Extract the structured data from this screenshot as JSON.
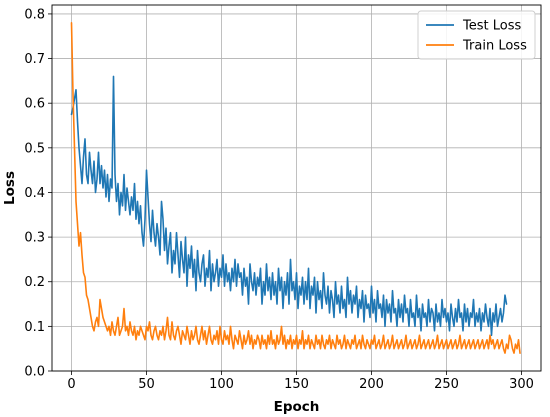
{
  "chart_data": {
    "type": "line",
    "title": "",
    "xlabel": "Epoch",
    "ylabel": "Loss",
    "xlim": [
      -13,
      313
    ],
    "ylim": [
      0.0,
      0.82
    ],
    "xticks": [
      0,
      50,
      100,
      150,
      200,
      250,
      300
    ],
    "yticks": [
      0.0,
      0.1,
      0.2,
      0.3,
      0.4,
      0.5,
      0.6,
      0.7,
      0.8
    ],
    "ytick_labels": [
      "0.0",
      "0.1",
      "0.2",
      "0.3",
      "0.4",
      "0.5",
      "0.6",
      "0.7",
      "0.8"
    ],
    "grid": true,
    "legend_position": "top-right",
    "x_start": 0,
    "x_step": 1,
    "series": [
      {
        "name": "Test Loss",
        "color": "#1f77b4",
        "values": [
          0.575,
          0.59,
          0.61,
          0.63,
          0.56,
          0.5,
          0.46,
          0.42,
          0.48,
          0.52,
          0.44,
          0.42,
          0.49,
          0.45,
          0.42,
          0.47,
          0.4,
          0.43,
          0.49,
          0.42,
          0.46,
          0.41,
          0.45,
          0.39,
          0.44,
          0.38,
          0.43,
          0.41,
          0.66,
          0.44,
          0.38,
          0.42,
          0.35,
          0.4,
          0.37,
          0.44,
          0.36,
          0.41,
          0.38,
          0.35,
          0.39,
          0.36,
          0.42,
          0.34,
          0.38,
          0.33,
          0.37,
          0.31,
          0.28,
          0.34,
          0.45,
          0.39,
          0.33,
          0.29,
          0.36,
          0.31,
          0.28,
          0.33,
          0.3,
          0.26,
          0.38,
          0.34,
          0.27,
          0.32,
          0.24,
          0.28,
          0.31,
          0.22,
          0.27,
          0.24,
          0.31,
          0.26,
          0.21,
          0.29,
          0.25,
          0.22,
          0.3,
          0.19,
          0.26,
          0.23,
          0.28,
          0.21,
          0.25,
          0.18,
          0.27,
          0.22,
          0.2,
          0.24,
          0.26,
          0.19,
          0.23,
          0.21,
          0.27,
          0.18,
          0.24,
          0.2,
          0.22,
          0.25,
          0.19,
          0.23,
          0.21,
          0.26,
          0.19,
          0.24,
          0.2,
          0.22,
          0.18,
          0.23,
          0.2,
          0.25,
          0.19,
          0.24,
          0.21,
          0.22,
          0.17,
          0.23,
          0.19,
          0.21,
          0.15,
          0.24,
          0.2,
          0.18,
          0.22,
          0.17,
          0.21,
          0.19,
          0.23,
          0.15,
          0.2,
          0.17,
          0.24,
          0.18,
          0.21,
          0.16,
          0.22,
          0.17,
          0.2,
          0.15,
          0.23,
          0.18,
          0.21,
          0.14,
          0.2,
          0.17,
          0.22,
          0.15,
          0.25,
          0.18,
          0.2,
          0.16,
          0.22,
          0.14,
          0.19,
          0.17,
          0.21,
          0.15,
          0.2,
          0.16,
          0.23,
          0.14,
          0.19,
          0.17,
          0.21,
          0.13,
          0.2,
          0.16,
          0.18,
          0.14,
          0.22,
          0.17,
          0.15,
          0.19,
          0.13,
          0.18,
          0.16,
          0.12,
          0.2,
          0.15,
          0.17,
          0.13,
          0.19,
          0.14,
          0.16,
          0.12,
          0.21,
          0.15,
          0.18,
          0.13,
          0.17,
          0.15,
          0.19,
          0.12,
          0.16,
          0.14,
          0.18,
          0.11,
          0.17,
          0.14,
          0.15,
          0.12,
          0.19,
          0.13,
          0.16,
          0.11,
          0.18,
          0.14,
          0.15,
          0.12,
          0.17,
          0.1,
          0.16,
          0.13,
          0.15,
          0.11,
          0.18,
          0.13,
          0.14,
          0.1,
          0.16,
          0.12,
          0.15,
          0.11,
          0.17,
          0.13,
          0.14,
          0.1,
          0.16,
          0.12,
          0.13,
          0.1,
          0.17,
          0.12,
          0.14,
          0.09,
          0.15,
          0.12,
          0.13,
          0.1,
          0.16,
          0.11,
          0.14,
          0.13,
          0.09,
          0.15,
          0.11,
          0.13,
          0.1,
          0.16,
          0.12,
          0.14,
          0.11,
          0.13,
          0.09,
          0.15,
          0.12,
          0.1,
          0.14,
          0.11,
          0.16,
          0.12,
          0.13,
          0.09,
          0.15,
          0.11,
          0.14,
          0.1,
          0.13,
          0.12,
          0.16,
          0.1,
          0.13,
          0.11,
          0.14,
          0.09,
          0.13,
          0.11,
          0.15,
          0.12,
          0.1,
          0.14,
          0.08,
          0.13,
          0.11,
          0.15,
          0.1,
          0.12,
          0.14,
          0.11,
          0.13,
          0.17,
          0.15
        ]
      },
      {
        "name": "Train Loss",
        "color": "#ff7f0e",
        "values": [
          0.78,
          0.62,
          0.5,
          0.38,
          0.33,
          0.28,
          0.31,
          0.26,
          0.22,
          0.21,
          0.17,
          0.16,
          0.14,
          0.12,
          0.1,
          0.09,
          0.11,
          0.12,
          0.1,
          0.16,
          0.14,
          0.12,
          0.11,
          0.1,
          0.09,
          0.1,
          0.08,
          0.11,
          0.09,
          0.08,
          0.1,
          0.12,
          0.08,
          0.09,
          0.1,
          0.14,
          0.09,
          0.1,
          0.08,
          0.11,
          0.09,
          0.08,
          0.1,
          0.07,
          0.09,
          0.08,
          0.1,
          0.09,
          0.08,
          0.07,
          0.1,
          0.09,
          0.11,
          0.08,
          0.07,
          0.09,
          0.1,
          0.08,
          0.07,
          0.09,
          0.08,
          0.1,
          0.07,
          0.09,
          0.12,
          0.08,
          0.07,
          0.11,
          0.08,
          0.07,
          0.09,
          0.1,
          0.08,
          0.06,
          0.09,
          0.08,
          0.07,
          0.1,
          0.08,
          0.06,
          0.09,
          0.07,
          0.08,
          0.1,
          0.07,
          0.06,
          0.08,
          0.1,
          0.07,
          0.09,
          0.06,
          0.08,
          0.1,
          0.07,
          0.06,
          0.08,
          0.07,
          0.09,
          0.06,
          0.1,
          0.07,
          0.06,
          0.09,
          0.07,
          0.08,
          0.06,
          0.1,
          0.07,
          0.05,
          0.08,
          0.07,
          0.06,
          0.09,
          0.07,
          0.05,
          0.08,
          0.06,
          0.07,
          0.09,
          0.06,
          0.08,
          0.05,
          0.07,
          0.06,
          0.08,
          0.07,
          0.05,
          0.08,
          0.06,
          0.07,
          0.05,
          0.08,
          0.06,
          0.09,
          0.06,
          0.07,
          0.05,
          0.08,
          0.06,
          0.07,
          0.1,
          0.06,
          0.08,
          0.05,
          0.07,
          0.06,
          0.08,
          0.05,
          0.07,
          0.06,
          0.08,
          0.05,
          0.07,
          0.06,
          0.09,
          0.05,
          0.07,
          0.06,
          0.08,
          0.05,
          0.07,
          0.06,
          0.05,
          0.08,
          0.06,
          0.07,
          0.05,
          0.08,
          0.06,
          0.05,
          0.07,
          0.06,
          0.08,
          0.05,
          0.07,
          0.06,
          0.05,
          0.08,
          0.06,
          0.07,
          0.05,
          0.06,
          0.08,
          0.05,
          0.07,
          0.06,
          0.05,
          0.07,
          0.06,
          0.08,
          0.05,
          0.06,
          0.07,
          0.05,
          0.08,
          0.06,
          0.05,
          0.07,
          0.06,
          0.05,
          0.07,
          0.06,
          0.08,
          0.05,
          0.06,
          0.07,
          0.05,
          0.06,
          0.08,
          0.05,
          0.06,
          0.07,
          0.05,
          0.06,
          0.08,
          0.05,
          0.06,
          0.07,
          0.05,
          0.06,
          0.07,
          0.05,
          0.06,
          0.08,
          0.05,
          0.06,
          0.07,
          0.05,
          0.06,
          0.07,
          0.05,
          0.06,
          0.08,
          0.05,
          0.06,
          0.07,
          0.05,
          0.06,
          0.07,
          0.05,
          0.06,
          0.07,
          0.05,
          0.06,
          0.08,
          0.05,
          0.06,
          0.07,
          0.05,
          0.06,
          0.07,
          0.05,
          0.06,
          0.07,
          0.05,
          0.06,
          0.07,
          0.05,
          0.06,
          0.08,
          0.05,
          0.06,
          0.07,
          0.05,
          0.06,
          0.07,
          0.05,
          0.06,
          0.07,
          0.05,
          0.06,
          0.07,
          0.05,
          0.06,
          0.07,
          0.05,
          0.06,
          0.07,
          0.05,
          0.08,
          0.06,
          0.07,
          0.05,
          0.06,
          0.07,
          0.05,
          0.06,
          0.07,
          0.05,
          0.04,
          0.06,
          0.05,
          0.08,
          0.07,
          0.05,
          0.04,
          0.06,
          0.05,
          0.07,
          0.04
        ]
      }
    ]
  }
}
